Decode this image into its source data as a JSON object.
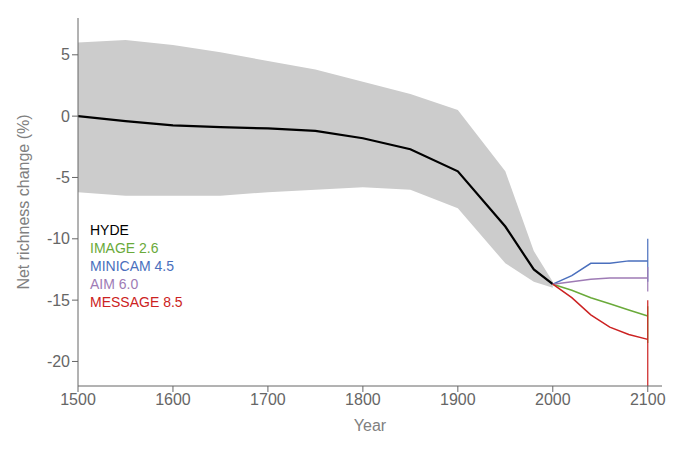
{
  "chart_data": {
    "type": "line",
    "xlabel": "Year",
    "ylabel": "Net richness change (%)",
    "xlim": [
      1500,
      2115
    ],
    "ylim": [
      -22,
      8
    ],
    "xticks": [
      1500,
      1600,
      1700,
      1800,
      1900,
      2000,
      2100
    ],
    "yticks": [
      -20,
      -15,
      -10,
      -5,
      0,
      5
    ],
    "grid": false,
    "legend": "lower left",
    "series": [
      {
        "name": "HYDE",
        "color": "#000000",
        "x": [
          1500,
          1550,
          1600,
          1650,
          1700,
          1750,
          1800,
          1850,
          1900,
          1950,
          1980,
          2000
        ],
        "values": [
          0.0,
          -0.4,
          -0.75,
          -0.9,
          -1.0,
          -1.2,
          -1.8,
          -2.7,
          -4.5,
          -9.0,
          -12.5,
          -13.7
        ],
        "band_upper": [
          6.0,
          6.2,
          5.8,
          5.2,
          4.5,
          3.8,
          2.8,
          1.8,
          0.5,
          -4.5,
          -11.0,
          -13.5
        ],
        "band_lower": [
          -6.2,
          -6.5,
          -6.5,
          -6.5,
          -6.2,
          -6.0,
          -5.8,
          -6.0,
          -7.5,
          -12.0,
          -13.5,
          -14.0
        ],
        "band_color": "#cccccc"
      },
      {
        "name": "IMAGE 2.6",
        "color": "#6aaa3a",
        "x": [
          2000,
          2020,
          2040,
          2060,
          2080,
          2100
        ],
        "values": [
          -13.7,
          -14.2,
          -14.8,
          -15.3,
          -15.8,
          -16.3
        ],
        "range_x": [
          2100,
          2100
        ],
        "range": [
          -15.5,
          -18.5
        ]
      },
      {
        "name": "MINICAM 4.5",
        "color": "#4a6fbd",
        "x": [
          2000,
          2020,
          2040,
          2060,
          2080,
          2100
        ],
        "values": [
          -13.7,
          -13.0,
          -12.0,
          -12.0,
          -11.8,
          -11.8
        ],
        "range_x": [
          2100,
          2100
        ],
        "range": [
          -10.0,
          -13.5
        ]
      },
      {
        "name": "AIM 6.0",
        "color": "#9e7bb5",
        "x": [
          2000,
          2020,
          2040,
          2060,
          2080,
          2100
        ],
        "values": [
          -13.7,
          -13.5,
          -13.3,
          -13.2,
          -13.2,
          -13.2
        ],
        "range_x": [
          2100,
          2100
        ],
        "range": [
          -12.3,
          -14.3
        ]
      },
      {
        "name": "MESSAGE 8.5",
        "color": "#cc2222",
        "x": [
          2000,
          2020,
          2040,
          2060,
          2080,
          2100
        ],
        "values": [
          -13.7,
          -14.8,
          -16.2,
          -17.2,
          -17.8,
          -18.2
        ],
        "range_x": [
          2100,
          2100
        ],
        "range": [
          -15.0,
          -22.0
        ]
      }
    ]
  }
}
